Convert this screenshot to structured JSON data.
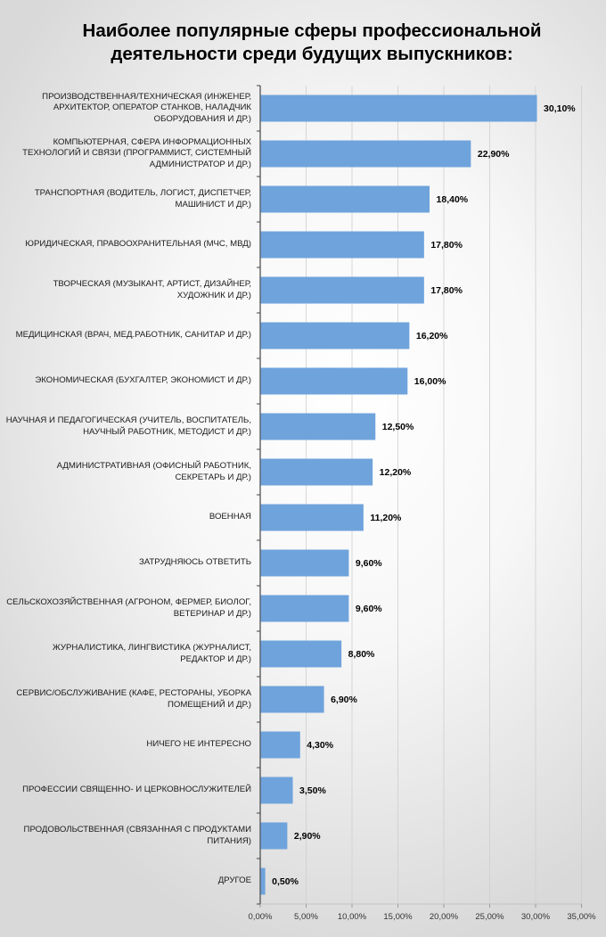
{
  "chart_data": {
    "type": "bar",
    "orientation": "horizontal",
    "title_line1": "Наиболее популярные сферы профессиональной",
    "title_line2": "деятельности среди будущих выпускников:",
    "categories": [
      "ПРОИЗВОДСТВЕННАЯ/ТЕХНИЧЕСКАЯ (ИНЖЕНЕР, АРХИТЕКТОР, ОПЕРАТОР СТАНКОВ, НАЛАДЧИК ОБОРУДОВАНИЯ И ДР.)",
      "КОМПЬЮТЕРНАЯ, СФЕРА ИНФОРМАЦИОННЫХ ТЕХНОЛОГИЙ И СВЯЗИ (ПРОГРАММИСТ, СИСТЕМНЫЙ АДМИНИСТРАТОР И ДР.)",
      "ТРАНСПОРТНАЯ (ВОДИТЕЛЬ, ЛОГИСТ, ДИСПЕТЧЕР, МАШИНИСТ И ДР.)",
      "ЮРИДИЧЕСКАЯ, ПРАВООХРАНИТЕЛЬНАЯ (МЧС, МВД)",
      "ТВОРЧЕСКАЯ (МУЗЫКАНТ, АРТИСТ, ДИЗАЙНЕР, ХУДОЖНИК И ДР.)",
      "МЕДИЦИНСКАЯ (ВРАЧ, МЕД.РАБОТНИК, САНИТАР И ДР.)",
      "ЭКОНОМИЧЕСКАЯ (БУХГАЛТЕР, ЭКОНОМИСТ И ДР.)",
      "НАУЧНАЯ И ПЕДАГОГИЧЕСКАЯ (УЧИТЕЛЬ, ВОСПИТАТЕЛЬ, НАУЧНЫЙ РАБОТНИК, МЕТОДИСТ И ДР.)",
      "АДМИНИСТРАТИВНАЯ (ОФИСНЫЙ РАБОТНИК, СЕКРЕТАРЬ И ДР.)",
      "ВОЕННАЯ",
      "ЗАТРУДНЯЮСЬ ОТВЕТИТЬ",
      "СЕЛЬСКОХОЗЯЙСТВЕННАЯ (АГРОНОМ, ФЕРМЕР, БИОЛОГ, ВЕТЕРИНАР И ДР.)",
      "ЖУРНАЛИСТИКА, ЛИНГВИСТИКА (ЖУРНАЛИСТ, РЕДАКТОР И ДР.)",
      "СЕРВИС/ОБСЛУЖИВАНИЕ (КАФЕ, РЕСТОРАНЫ, УБОРКА ПОМЕЩЕНИЙ И ДР.)",
      "НИЧЕГО НЕ ИНТЕРЕСНО",
      "ПРОФЕССИИ СВЯЩЕННО- И ЦЕРКОВНОСЛУЖИТЕЛЕЙ",
      "ПРОДОВОЛЬСТВЕННАЯ (СВЯЗАННАЯ С ПРОДУКТАМИ ПИТАНИЯ)",
      "ДРУГОЕ"
    ],
    "values": [
      30.1,
      22.9,
      18.4,
      17.8,
      17.8,
      16.2,
      16.0,
      12.5,
      12.2,
      11.2,
      9.6,
      9.6,
      8.8,
      6.9,
      4.3,
      3.5,
      2.9,
      0.5
    ],
    "value_labels": [
      "30,10%",
      "22,90%",
      "18,40%",
      "17,80%",
      "17,80%",
      "16,20%",
      "16,00%",
      "12,50%",
      "12,20%",
      "11,20%",
      "9,60%",
      "9,60%",
      "8,80%",
      "6,90%",
      "4,30%",
      "3,50%",
      "2,90%",
      "0,50%"
    ],
    "xlim": [
      0,
      35
    ],
    "x_ticks": [
      "0,00%",
      "5,00%",
      "10,00%",
      "15,00%",
      "20,00%",
      "25,00%",
      "30,00%",
      "35,00%"
    ],
    "grid": true,
    "legend": "none",
    "bar_color": "#6fa3dc"
  }
}
